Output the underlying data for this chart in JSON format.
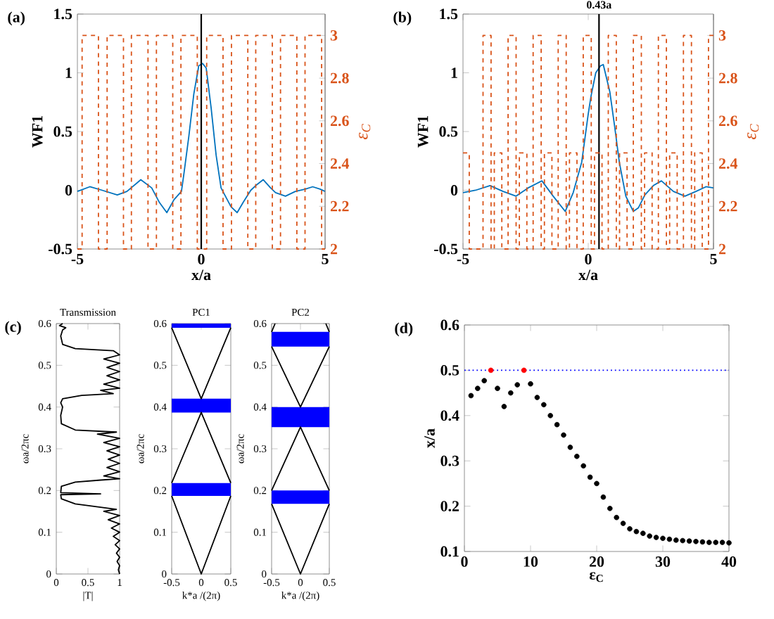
{
  "chart_data": [
    {
      "type": "line",
      "xlabel": "x/a",
      "ylabel": "WF1",
      "y2label": "ε$_{C}$",
      "annotations": [
        "(a)"
      ],
      "xlim": [
        -5,
        5
      ],
      "ylim": [
        -0.5,
        1.5
      ],
      "y2lim": [
        2,
        3.1
      ],
      "xticks": [
        -5,
        0,
        5
      ],
      "yticks": [
        -0.5,
        0,
        0.5,
        1,
        1.5
      ],
      "y2ticks": [
        2,
        2.2,
        2.4,
        2.6,
        2.8,
        3
      ],
      "ref_lines": [
        {
          "axis": "x",
          "value": 0,
          "color": "#000000"
        }
      ],
      "series": [
        {
          "type": "step",
          "axis": "y2",
          "color": "#d95319",
          "line_style": "dashed",
          "x": [
            -5,
            -4.81,
            -4.15,
            -3.8,
            -3.14,
            -2.82,
            -2.15,
            -1.81,
            -1.15,
            -0.82,
            -0.16,
            0.22,
            0.88,
            1.22,
            1.88,
            2.2,
            2.87,
            3.2,
            3.86,
            4.19,
            4.86,
            5
          ],
          "values": [
            2,
            3,
            2,
            3,
            2,
            3,
            2,
            3,
            2,
            3,
            2,
            3,
            2,
            3,
            2,
            3,
            2,
            3,
            2,
            3,
            2,
            2
          ]
        },
        {
          "type": "line",
          "color": "#0072bd",
          "x": [
            -5,
            -4.5,
            -4,
            -3.39,
            -3,
            -2.44,
            -2,
            -1.7,
            -1.39,
            -1.1,
            -0.8,
            -0.7,
            -0.5,
            -0.3,
            -0.1,
            0.05,
            0.2,
            0.4,
            0.6,
            0.8,
            0.9,
            1.2,
            1.45,
            1.7,
            2,
            2.2,
            2.5,
            2.8,
            3,
            3.4,
            3.8,
            4.2,
            4.5,
            4.8,
            5
          ],
          "values": [
            -0.01,
            0.03,
            0,
            -0.04,
            -0.01,
            0.09,
            0.02,
            -0.1,
            -0.19,
            -0.08,
            -0.01,
            0.14,
            0.46,
            0.82,
            1.06,
            1.08,
            1.04,
            0.7,
            0.3,
            0.02,
            -0.02,
            -0.14,
            -0.19,
            -0.1,
            0,
            0.04,
            0.09,
            0.02,
            -0.02,
            -0.05,
            -0.01,
            0.01,
            0.03,
            0.01,
            -0.01
          ]
        }
      ]
    },
    {
      "type": "line",
      "xlabel": "x/a",
      "ylabel": "WF1",
      "y2label": "ε$_{C}$",
      "annotations": [
        "(b)"
      ],
      "xlim": [
        -5,
        5
      ],
      "ylim": [
        -0.5,
        1.5
      ],
      "y2lim": [
        2,
        3.1
      ],
      "xticks": [
        -5,
        0,
        5
      ],
      "yticks": [
        -0.5,
        0,
        0.5,
        1,
        1.5
      ],
      "y2ticks": [
        2,
        2.2,
        2.4,
        2.6,
        2.8,
        3
      ],
      "ref_lines": [
        {
          "axis": "x",
          "value": 0.43,
          "label": "0.43a",
          "color": "#000000"
        }
      ],
      "series": [
        {
          "type": "step",
          "axis": "y2",
          "color": "#d95319",
          "line_style": "dashed",
          "x": [
            -5,
            -4.75,
            -4.2,
            -3.88,
            -3.75,
            -3.45,
            -3.2,
            -2.88,
            -2.75,
            -2.45,
            -2.2,
            -1.88,
            -1.75,
            -1.45,
            -1.2,
            -0.88,
            -0.75,
            -0.45,
            -0.2,
            0.12,
            0.25,
            0.55,
            0.8,
            1.12,
            1.25,
            1.55,
            1.8,
            2.12,
            2.25,
            2.55,
            2.8,
            3.12,
            3.25,
            3.55,
            3.8,
            4.12,
            4.25,
            4.55,
            4.8,
            5
          ],
          "values": [
            2.45,
            2,
            3,
            2,
            2.45,
            2,
            3,
            2,
            2.45,
            2,
            3,
            2,
            2.45,
            2,
            3,
            2,
            2.45,
            2,
            3,
            2,
            2.45,
            2,
            3,
            2,
            2.45,
            2,
            3,
            2,
            2.45,
            2,
            3,
            2,
            2.45,
            2,
            3,
            2,
            2.45,
            2,
            3,
            3
          ]
        },
        {
          "type": "line",
          "color": "#0072bd",
          "x": [
            -5,
            -4.5,
            -3.92,
            -3.4,
            -2.88,
            -2.4,
            -1.85,
            -1.4,
            -0.92,
            -0.6,
            -0.26,
            0,
            0.11,
            0.3,
            0.49,
            0.6,
            0.86,
            1.05,
            1.24,
            1.5,
            1.8,
            2,
            2.26,
            2.6,
            2.92,
            3.4,
            3.86,
            4.3,
            4.7,
            5
          ],
          "values": [
            -0.02,
            0,
            0.04,
            -0.01,
            -0.05,
            0.02,
            0.08,
            -0.05,
            -0.18,
            -0.02,
            0.24,
            0.65,
            0.8,
            1,
            1.06,
            1.07,
            0.84,
            0.55,
            0.24,
            -0.05,
            -0.18,
            -0.15,
            -0.04,
            0.04,
            0.08,
            -0.01,
            -0.05,
            -0.01,
            0.03,
            0.02
          ]
        }
      ]
    },
    {
      "type": "line",
      "title": "Transmission",
      "xlabel": "|T|",
      "ylabel": "ωa/2πc",
      "annotations": [
        "(c)"
      ],
      "xlim": [
        0,
        1
      ],
      "ylim": [
        0,
        0.6
      ],
      "xticks": [
        0,
        0.5,
        1
      ],
      "yticks": [
        0,
        0.1,
        0.2,
        0.3,
        0.4,
        0.5,
        0.6
      ],
      "series": [
        {
          "color": "#000000",
          "x": [
            1,
            0.98,
            1,
            0.96,
            1,
            0.95,
            1,
            0.93,
            1,
            0.9,
            1,
            0.87,
            1,
            0.82,
            1,
            0.75,
            0.95,
            0.7,
            0.3,
            0.08,
            0.07,
            0.7,
            0.07,
            0.08,
            0.3,
            0.7,
            1,
            0.75,
            1,
            0.8,
            1,
            0.82,
            1,
            0.8,
            1,
            0.75,
            1,
            0.65,
            0.95,
            0.3,
            0.08,
            0.07,
            0.1,
            0.07,
            0.1,
            0.4,
            0.9,
            0.7,
            1,
            0.75,
            1,
            0.8,
            1,
            0.8,
            1,
            0.75,
            1,
            0.9,
            0.3,
            0.1,
            0.07,
            0.1,
            0.15,
            0.05,
            0.1
          ],
          "values": [
            0,
            0.01,
            0.02,
            0.03,
            0.04,
            0.05,
            0.06,
            0.07,
            0.08,
            0.09,
            0.1,
            0.11,
            0.12,
            0.13,
            0.14,
            0.15,
            0.155,
            0.16,
            0.168,
            0.18,
            0.19,
            0.192,
            0.195,
            0.21,
            0.22,
            0.225,
            0.228,
            0.235,
            0.245,
            0.255,
            0.265,
            0.275,
            0.285,
            0.295,
            0.305,
            0.315,
            0.325,
            0.335,
            0.34,
            0.345,
            0.36,
            0.38,
            0.4,
            0.41,
            0.42,
            0.428,
            0.432,
            0.44,
            0.445,
            0.455,
            0.465,
            0.475,
            0.485,
            0.495,
            0.505,
            0.515,
            0.525,
            0.535,
            0.54,
            0.55,
            0.57,
            0.585,
            0.59,
            0.595,
            0.6
          ]
        }
      ]
    },
    {
      "type": "line",
      "title": "PC1",
      "xlabel": "k*a /(2π)",
      "ylabel": "ωa/2πc",
      "xlim": [
        -0.5,
        0.5
      ],
      "ylim": [
        0,
        0.6
      ],
      "xticks": [
        -0.5,
        0,
        0.5
      ],
      "yticks": [
        0,
        0.1,
        0.2,
        0.3,
        0.4,
        0.5,
        0.6
      ],
      "bands": [
        {
          "axis": "y",
          "from": 0.187,
          "to": 0.218,
          "color": "#0000ff"
        },
        {
          "axis": "y",
          "from": 0.387,
          "to": 0.42,
          "color": "#0000ff"
        },
        {
          "axis": "y",
          "from": 0.59,
          "to": 0.6,
          "color": "#0000ff"
        }
      ],
      "series": [
        {
          "color": "#000000",
          "x": [
            -0.5,
            0,
            0.5
          ],
          "values": [
            0.187,
            0,
            0.187
          ]
        },
        {
          "color": "#000000",
          "x": [
            -0.5,
            0,
            0.5
          ],
          "values": [
            0.218,
            0.387,
            0.218
          ]
        },
        {
          "color": "#000000",
          "x": [
            -0.5,
            0,
            0.5
          ],
          "values": [
            0.59,
            0.42,
            0.59
          ]
        }
      ]
    },
    {
      "type": "line",
      "title": "PC2",
      "xlabel": "k*a /(2π)",
      "ylabel": "ωa/2πc",
      "xlim": [
        -0.5,
        0.5
      ],
      "ylim": [
        0,
        0.6
      ],
      "xticks": [
        -0.5,
        0,
        0.5
      ],
      "yticks": [
        0,
        0.1,
        0.2,
        0.3,
        0.4,
        0.5,
        0.6
      ],
      "bands": [
        {
          "axis": "y",
          "from": 0.168,
          "to": 0.2,
          "color": "#0000ff"
        },
        {
          "axis": "y",
          "from": 0.352,
          "to": 0.4,
          "color": "#0000ff"
        },
        {
          "axis": "y",
          "from": 0.545,
          "to": 0.58,
          "color": "#0000ff"
        }
      ],
      "series": [
        {
          "color": "#000000",
          "x": [
            -0.5,
            0,
            0.5
          ],
          "values": [
            0.168,
            0,
            0.168
          ]
        },
        {
          "color": "#000000",
          "x": [
            -0.5,
            0,
            0.5
          ],
          "values": [
            0.2,
            0.352,
            0.2
          ]
        },
        {
          "color": "#000000",
          "x": [
            -0.5,
            0,
            0.5
          ],
          "values": [
            0.545,
            0.4,
            0.545
          ]
        },
        {
          "color": "#000000",
          "x": [
            -0.5,
            -0.44,
            0,
            0.44,
            0.5
          ],
          "values": [
            0.58,
            0.6,
            null,
            0.6,
            0.58
          ]
        }
      ]
    },
    {
      "type": "scatter",
      "xlabel": "ε$_{C}$",
      "ylabel": "x/a",
      "annotations": [
        "(d)"
      ],
      "xlim": [
        0,
        40
      ],
      "ylim": [
        0.1,
        0.6
      ],
      "xticks": [
        0,
        10,
        20,
        30,
        40
      ],
      "yticks": [
        0.1,
        0.2,
        0.3,
        0.4,
        0.5,
        0.6
      ],
      "ref_lines": [
        {
          "axis": "y",
          "value": 0.5,
          "color": "#0000ff",
          "line_style": "dotted"
        }
      ],
      "series": [
        {
          "color": "#000000",
          "marker": "circle",
          "x": [
            1,
            2,
            3,
            5,
            6,
            7,
            8,
            10,
            11,
            12,
            13,
            14,
            15,
            16,
            17,
            18,
            19,
            20,
            21,
            22,
            23,
            24,
            25,
            26,
            27,
            28,
            29,
            30,
            31,
            32,
            33,
            34,
            35,
            36,
            37,
            38,
            39,
            40
          ],
          "values": [
            0.444,
            0.46,
            0.477,
            0.46,
            0.42,
            0.45,
            0.468,
            0.47,
            0.44,
            0.424,
            0.4,
            0.38,
            0.357,
            0.33,
            0.31,
            0.289,
            0.264,
            0.25,
            0.22,
            0.195,
            0.175,
            0.162,
            0.15,
            0.144,
            0.14,
            0.134,
            0.131,
            0.129,
            0.127,
            0.125,
            0.124,
            0.123,
            0.122,
            0.121,
            0.12,
            0.12,
            0.12,
            0.119
          ]
        },
        {
          "color": "#ff0000",
          "marker": "circle",
          "x": [
            4,
            9
          ],
          "values": [
            0.5,
            0.5
          ]
        }
      ]
    }
  ]
}
